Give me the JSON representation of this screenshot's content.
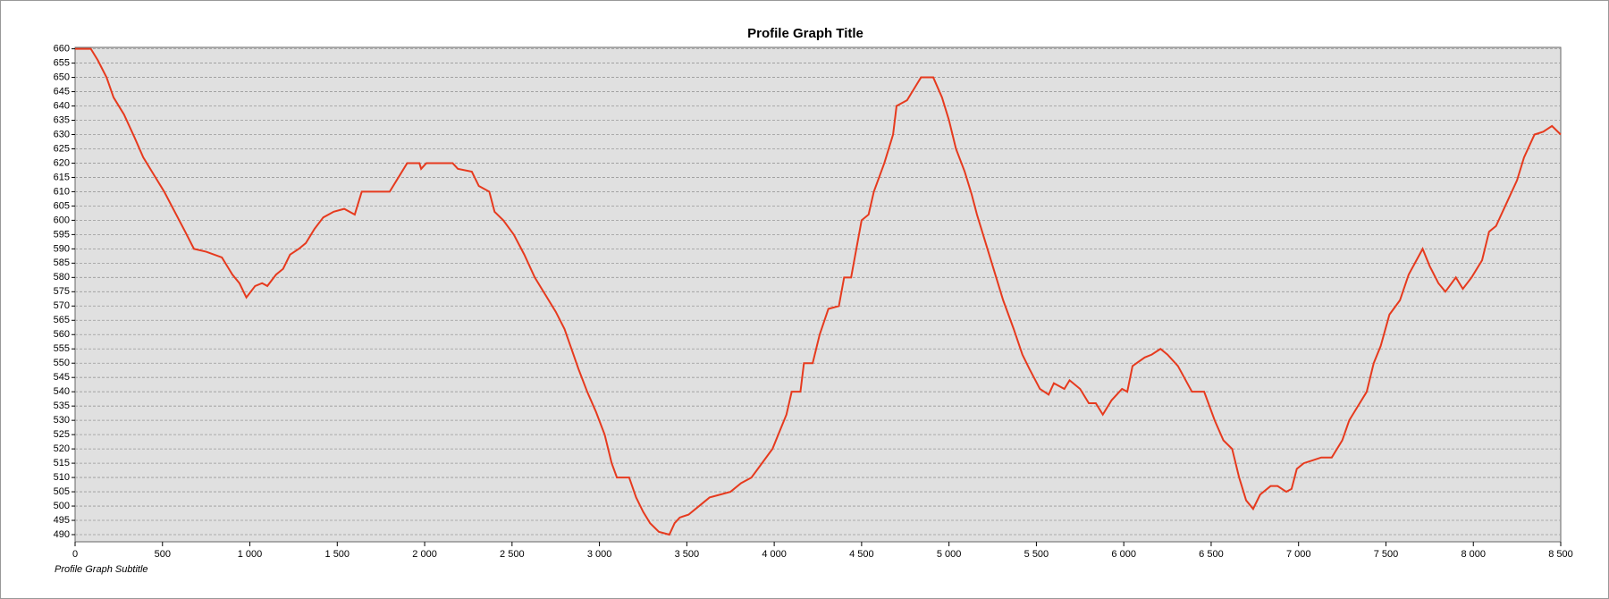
{
  "chart_data": {
    "type": "line",
    "title": "Profile Graph Title",
    "subtitle": "Profile Graph Subtitle",
    "grid": true,
    "xlim": [
      0,
      8500
    ],
    "ylim": [
      487.5,
      660.5
    ],
    "xticks": [
      0,
      500,
      {
        "value": 1000,
        "label": "1 000"
      },
      {
        "value": 1500,
        "label": "1 500"
      },
      {
        "value": 2000,
        "label": "2 000"
      },
      {
        "value": 2500,
        "label": "2 500"
      },
      {
        "value": 3000,
        "label": "3 000"
      },
      {
        "value": 3500,
        "label": "3 500"
      },
      {
        "value": 4000,
        "label": "4 000"
      },
      {
        "value": 4500,
        "label": "4 500"
      },
      {
        "value": 5000,
        "label": "5 000"
      },
      {
        "value": 5500,
        "label": "5 500"
      },
      {
        "value": 6000,
        "label": "6 000"
      },
      {
        "value": 6500,
        "label": "6 500"
      },
      {
        "value": 7000,
        "label": "7 000"
      },
      {
        "value": 7500,
        "label": "7 500"
      },
      {
        "value": 8000,
        "label": "8 000"
      },
      {
        "value": 8500,
        "label": "8 500"
      }
    ],
    "yticks": [
      490,
      495,
      500,
      505,
      510,
      515,
      520,
      525,
      530,
      535,
      540,
      545,
      550,
      555,
      560,
      565,
      570,
      575,
      580,
      585,
      590,
      595,
      600,
      605,
      610,
      615,
      620,
      625,
      630,
      635,
      640,
      645,
      650,
      655,
      660
    ],
    "x": [
      0,
      90,
      130,
      180,
      220,
      280,
      340,
      390,
      450,
      510,
      570,
      630,
      680,
      750,
      840,
      900,
      940,
      980,
      1030,
      1070,
      1100,
      1150,
      1190,
      1230,
      1280,
      1320,
      1370,
      1420,
      1480,
      1540,
      1600,
      1640,
      1800,
      1870,
      1900,
      1970,
      1980,
      2010,
      2160,
      2190,
      2270,
      2310,
      2370,
      2400,
      2450,
      2510,
      2570,
      2630,
      2690,
      2750,
      2800,
      2840,
      2880,
      2930,
      2980,
      3030,
      3070,
      3100,
      3170,
      3210,
      3250,
      3290,
      3340,
      3400,
      3430,
      3460,
      3510,
      3570,
      3630,
      3690,
      3750,
      3810,
      3870,
      3930,
      3990,
      4030,
      4070,
      4100,
      4150,
      4170,
      4220,
      4260,
      4310,
      4370,
      4400,
      4440,
      4470,
      4500,
      4540,
      4570,
      4630,
      4680,
      4700,
      4760,
      4810,
      4840,
      4910,
      4960,
      5000,
      5040,
      5090,
      5130,
      5160,
      5210,
      5270,
      5310,
      5370,
      5420,
      5460,
      5520,
      5570,
      5600,
      5660,
      5690,
      5750,
      5800,
      5840,
      5880,
      5930,
      5990,
      6020,
      6050,
      6120,
      6160,
      6210,
      6250,
      6310,
      6390,
      6460,
      6520,
      6570,
      6620,
      6660,
      6700,
      6740,
      6780,
      6840,
      6880,
      6930,
      6960,
      6990,
      7030,
      7080,
      7130,
      7190,
      7250,
      7290,
      7340,
      7390,
      7430,
      7470,
      7520,
      7580,
      7630,
      7710,
      7750,
      7800,
      7840,
      7900,
      7940,
      7990,
      8050,
      8090,
      8130,
      8190,
      8250,
      8290,
      8350,
      8400,
      8450,
      8500
    ],
    "series": [
      {
        "color": "#e63a1e",
        "values": [
          660,
          660,
          656,
          650,
          643,
          637,
          629,
          622,
          616,
          610,
          603,
          596,
          590,
          589,
          587,
          581,
          578,
          573,
          577,
          578,
          577,
          581,
          583,
          588,
          590,
          592,
          597,
          601,
          603,
          604,
          602,
          610,
          610,
          617,
          620,
          620,
          618,
          620,
          620,
          618,
          617,
          612,
          610,
          603,
          600,
          595,
          588,
          580,
          574,
          568,
          562,
          555,
          548,
          540,
          533,
          525,
          515,
          510,
          510,
          503,
          498,
          494,
          491,
          490,
          494,
          496,
          497,
          500,
          503,
          504,
          505,
          508,
          510,
          515,
          520,
          526,
          532,
          540,
          540,
          550,
          550,
          560,
          569,
          570,
          580,
          580,
          590,
          600,
          602,
          610,
          620,
          630,
          640,
          642,
          647,
          650,
          650,
          643,
          635,
          625,
          617,
          609,
          602,
          592,
          580,
          572,
          562,
          553,
          548,
          541,
          539,
          543,
          541,
          544,
          541,
          536,
          536,
          532,
          537,
          541,
          540,
          549,
          552,
          553,
          555,
          553,
          549,
          540,
          540,
          530,
          523,
          520,
          510,
          502,
          499,
          504,
          507,
          507,
          505,
          506,
          513,
          515,
          516,
          517,
          517,
          523,
          530,
          535,
          540,
          550,
          556,
          567,
          572,
          581,
          590,
          584,
          578,
          575,
          580,
          576,
          580,
          586,
          596,
          598,
          606,
          614,
          622,
          630,
          631,
          633,
          630
        ]
      }
    ]
  }
}
